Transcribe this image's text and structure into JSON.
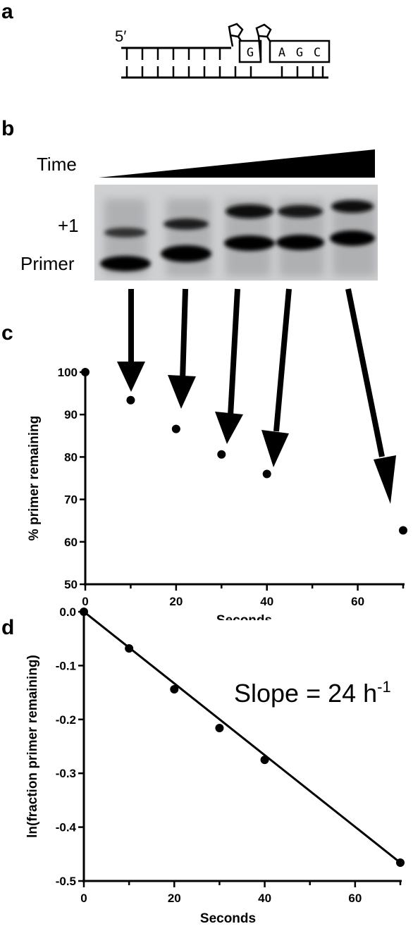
{
  "panels": {
    "a": "a",
    "b": "b",
    "c": "c",
    "d": "d"
  },
  "duplex": {
    "five_prime_label": "5′",
    "boxed_bases": [
      "G",
      "A",
      "G",
      "C"
    ]
  },
  "gel": {
    "time_label": "Time",
    "plus1_label": "+1",
    "primer_label": "Primer",
    "lanes": 5
  },
  "chart_data": [
    {
      "type": "scatter",
      "panel": "c",
      "xlabel": "Seconds",
      "ylabel": "% primer remaining",
      "xlim": [
        0,
        70
      ],
      "ylim": [
        50,
        100
      ],
      "xticks": [
        0,
        20,
        40,
        60
      ],
      "yticks": [
        50,
        60,
        70,
        80,
        90,
        100
      ],
      "x": [
        0,
        10,
        20,
        30,
        40,
        70
      ],
      "y": [
        100,
        93.4,
        86.6,
        80.6,
        76.0,
        62.7
      ]
    },
    {
      "type": "scatter",
      "panel": "d",
      "xlabel": "Seconds",
      "ylabel": "ln(fraction primer remaining)",
      "xlim": [
        0,
        70
      ],
      "ylim": [
        -0.5,
        0.0
      ],
      "xticks": [
        0,
        20,
        40,
        60
      ],
      "yticks": [
        "0.0",
        "-0.1",
        "-0.2",
        "-0.3",
        "-0.4",
        "-0.5"
      ],
      "x": [
        0,
        10,
        20,
        30,
        40,
        70
      ],
      "y": [
        0.0,
        -0.068,
        -0.144,
        -0.216,
        -0.275,
        -0.466
      ],
      "fit_line": {
        "x": [
          0,
          70
        ],
        "y": [
          0.0,
          -0.466
        ]
      },
      "annotation": "Slope = 24 h",
      "annotation_sup": "-1"
    }
  ]
}
